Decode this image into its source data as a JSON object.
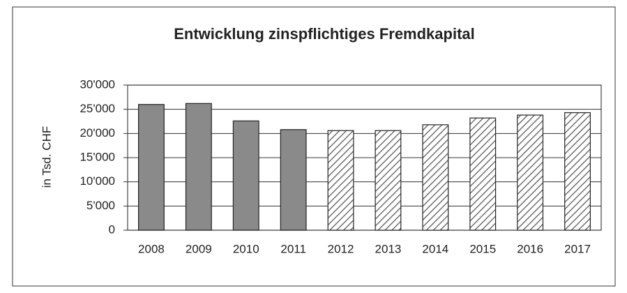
{
  "chart_data": {
    "type": "bar",
    "title": "Entwicklung zinspflichtiges Fremdkapital",
    "y_label": "in Tsd. CHF",
    "categories": [
      "2008",
      "2009",
      "2010",
      "2011",
      "2012",
      "2013",
      "2014",
      "2015",
      "2016",
      "2017"
    ],
    "values": [
      26000,
      26200,
      22600,
      20800,
      20600,
      20600,
      21800,
      23200,
      23800,
      24300
    ],
    "bar_styles": [
      "solid",
      "solid",
      "solid",
      "solid",
      "hatched",
      "hatched",
      "hatched",
      "hatched",
      "hatched",
      "hatched"
    ],
    "color": "#8a8a8a",
    "ylim": [
      0,
      30000
    ],
    "yticks": [
      0,
      {
        "value": 5000,
        "label": "5'000"
      },
      {
        "value": 10000,
        "label": "10'000"
      },
      {
        "value": 15000,
        "label": "15'000"
      },
      {
        "value": 20000,
        "label": "20'000"
      },
      {
        "value": 25000,
        "label": "25'000"
      },
      {
        "value": 30000,
        "label": "30'000"
      }
    ],
    "grid": true
  }
}
